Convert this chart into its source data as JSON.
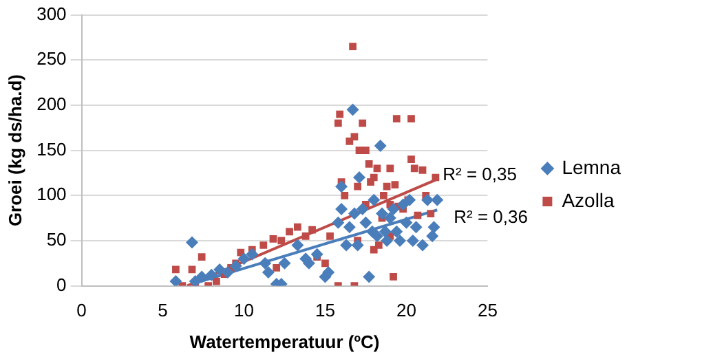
{
  "chart_data": {
    "type": "scatter",
    "xlabel": "Watertemperatuur (ºC)",
    "ylabel": "Groei (kg ds/ha.d)",
    "xlim": [
      0,
      25
    ],
    "xticks": [
      0,
      5,
      10,
      15,
      20,
      25
    ],
    "ylim": [
      0,
      300
    ],
    "yticks": [
      0,
      50,
      100,
      150,
      200,
      250,
      300
    ],
    "grid": "y",
    "legend": "right",
    "series": [
      {
        "name": "Lemna",
        "color": "#4a7ebb",
        "marker": "diamond",
        "x": [
          5.8,
          6.8,
          7,
          7.4,
          8,
          8.5,
          9,
          9.5,
          10,
          10.5,
          11.3,
          11.5,
          12,
          12.3,
          12.5,
          13.3,
          13.8,
          14,
          14.5,
          15,
          15.2,
          15.8,
          16,
          16,
          16.3,
          16.5,
          16.7,
          16.8,
          17,
          17.1,
          17.3,
          17.5,
          17.7,
          17.9,
          18,
          18.2,
          18.4,
          18.5,
          18.7,
          18.8,
          19,
          19.2,
          19.4,
          19.6,
          19.8,
          20,
          20.2,
          20.4,
          20.6,
          21,
          21.3,
          21.6,
          21.7,
          21.9
        ],
        "values": [
          5,
          48,
          5,
          10,
          12,
          18,
          15,
          22,
          30,
          35,
          25,
          15,
          2,
          2,
          25,
          45,
          30,
          25,
          35,
          10,
          15,
          70,
          85,
          110,
          45,
          65,
          195,
          80,
          45,
          120,
          85,
          70,
          10,
          60,
          95,
          55,
          155,
          80,
          60,
          50,
          75,
          85,
          60,
          50,
          90,
          70,
          95,
          50,
          65,
          45,
          95,
          55,
          65,
          95
        ]
      },
      {
        "name": "Azolla",
        "color": "#be4b48",
        "marker": "square",
        "x": [
          5.8,
          6.2,
          6.8,
          7,
          7.4,
          7.8,
          8.3,
          8.8,
          9.2,
          9.5,
          9.8,
          10.5,
          11.2,
          11.8,
          12,
          12.3,
          12.8,
          13.3,
          13.8,
          14.2,
          14.5,
          15,
          15.3,
          15.8,
          15.8,
          15.9,
          16,
          16.2,
          16.5,
          16.7,
          16.8,
          16.8,
          17,
          17,
          17.1,
          17.3,
          17.5,
          17.5,
          17.7,
          17.8,
          18,
          18,
          18.2,
          18.3,
          18.5,
          18.6,
          18.8,
          19,
          19,
          19,
          19.2,
          19.3,
          19.4,
          19.5,
          19.8,
          20.1,
          20.3,
          20.3,
          20.5,
          20.7,
          21,
          21.2,
          21.5,
          21.8
        ],
        "values": [
          18,
          0,
          18,
          3,
          32,
          0,
          5,
          13,
          20,
          25,
          37,
          40,
          45,
          52,
          20,
          50,
          60,
          65,
          55,
          62,
          32,
          25,
          55,
          0,
          180,
          190,
          115,
          100,
          160,
          265,
          165,
          0,
          50,
          110,
          150,
          180,
          90,
          150,
          135,
          115,
          40,
          120,
          130,
          45,
          75,
          100,
          110,
          55,
          90,
          130,
          10,
          112,
          185,
          88,
          85,
          95,
          185,
          140,
          130,
          78,
          128,
          100,
          80,
          120
        ]
      },
      {
        "type": "line",
        "color": "#4a7ebb",
        "x": [
          7,
          21.9
        ],
        "values": [
          3,
          84
        ]
      },
      {
        "type": "line",
        "color": "#be4b48",
        "x": [
          6.5,
          21.9
        ],
        "values": [
          0,
          118
        ]
      }
    ],
    "annotations": [
      {
        "text": "R² = 0,35",
        "x": 21.9,
        "y": 118
      },
      {
        "text": "R² = 0,36",
        "x": 21.9,
        "y": 84
      }
    ]
  }
}
